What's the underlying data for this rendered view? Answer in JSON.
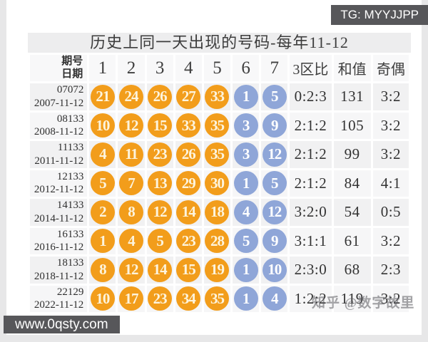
{
  "badges": {
    "telegram": "TG: MYYJJPP",
    "website": "www.0qsty.com"
  },
  "watermark": "知乎 @数字故里",
  "colors": {
    "front_ball": "#f29d1b",
    "back_ball": "#8fa6d8",
    "badge_bg": "#57575a",
    "title_bg": "#ededee"
  },
  "table": {
    "title": "历史上同一天出现的号码-每年11-12",
    "header": {
      "issue_label": "期号",
      "date_label": "日期",
      "number_columns": [
        "1",
        "2",
        "3",
        "4",
        "5",
        "6",
        "7"
      ],
      "zone_ratio_label": "3区比",
      "sum_label": "和值",
      "odd_even_label": "奇偶"
    },
    "rows": [
      {
        "issue": "07072",
        "date": "2007-11-12",
        "front": [
          "21",
          "24",
          "26",
          "27",
          "33"
        ],
        "back": [
          "1",
          "5"
        ],
        "zone_ratio": "0:2:3",
        "sum": "131",
        "odd_even": "3:2"
      },
      {
        "issue": "08133",
        "date": "2008-11-12",
        "front": [
          "10",
          "12",
          "15",
          "33",
          "35"
        ],
        "back": [
          "3",
          "9"
        ],
        "zone_ratio": "2:1:2",
        "sum": "105",
        "odd_even": "3:2"
      },
      {
        "issue": "11133",
        "date": "2011-11-12",
        "front": [
          "4",
          "11",
          "23",
          "26",
          "35"
        ],
        "back": [
          "3",
          "12"
        ],
        "zone_ratio": "2:1:2",
        "sum": "99",
        "odd_even": "3:2"
      },
      {
        "issue": "12133",
        "date": "2012-11-12",
        "front": [
          "5",
          "7",
          "13",
          "29",
          "30"
        ],
        "back": [
          "1",
          "5"
        ],
        "zone_ratio": "2:1:2",
        "sum": "84",
        "odd_even": "4:1"
      },
      {
        "issue": "14133",
        "date": "2014-11-12",
        "front": [
          "2",
          "8",
          "12",
          "14",
          "18"
        ],
        "back": [
          "4",
          "12"
        ],
        "zone_ratio": "3:2:0",
        "sum": "54",
        "odd_even": "0:5"
      },
      {
        "issue": "16133",
        "date": "2016-11-12",
        "front": [
          "1",
          "4",
          "5",
          "23",
          "28"
        ],
        "back": [
          "5",
          "9"
        ],
        "zone_ratio": "3:1:1",
        "sum": "61",
        "odd_even": "3:2"
      },
      {
        "issue": "18133",
        "date": "2018-11-12",
        "front": [
          "8",
          "12",
          "14",
          "15",
          "19"
        ],
        "back": [
          "1",
          "10"
        ],
        "zone_ratio": "2:3:0",
        "sum": "68",
        "odd_even": "2:3"
      },
      {
        "issue": "22129",
        "date": "2022-11-12",
        "front": [
          "10",
          "17",
          "23",
          "34",
          "35"
        ],
        "back": [
          "1",
          "4"
        ],
        "zone_ratio": "1:2:2",
        "sum": "119",
        "odd_even": "3:2"
      }
    ]
  }
}
